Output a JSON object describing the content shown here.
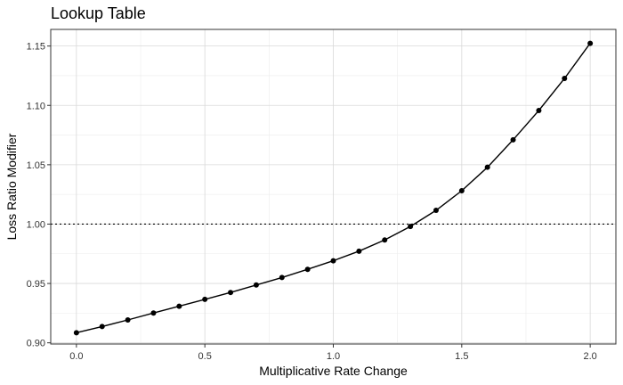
{
  "chart_data": {
    "type": "line",
    "title": "Lookup Table",
    "xlabel": "Multiplicative Rate Change",
    "ylabel": "Loss Ratio Modifier",
    "xlim": [
      -0.1,
      2.1
    ],
    "ylim": [
      0.899,
      1.164
    ],
    "x_ticks": [
      0.0,
      0.5,
      1.0,
      1.5,
      2.0
    ],
    "x_tick_labels": [
      "0.0",
      "0.5",
      "1.0",
      "1.5",
      "2.0"
    ],
    "y_ticks": [
      0.9,
      0.95,
      1.0,
      1.05,
      1.1,
      1.15
    ],
    "y_tick_labels": [
      "0.90",
      "0.95",
      "1.00",
      "1.05",
      "1.10",
      "1.15"
    ],
    "grid": true,
    "reference_line": {
      "y": 1.0,
      "style": "dotted"
    },
    "colors": {
      "line": "#000000",
      "grid_major": "#d9d9d9",
      "grid_minor": "#ececec",
      "panel_border": "#333333"
    },
    "series": [
      {
        "x": [
          0.0,
          0.1,
          0.2,
          0.3,
          0.4,
          0.5,
          0.6,
          0.7,
          0.8,
          0.9,
          1.0,
          1.1,
          1.2,
          1.3,
          1.4,
          1.5,
          1.6,
          1.7,
          1.8,
          1.9,
          2.0
        ],
        "y": [
          0.9085,
          0.9137,
          0.9193,
          0.9251,
          0.9308,
          0.9366,
          0.9424,
          0.9487,
          0.955,
          0.9619,
          0.9691,
          0.9772,
          0.9866,
          0.998,
          1.0116,
          1.0281,
          1.0479,
          1.071,
          1.0957,
          1.1227,
          1.1523
        ]
      }
    ]
  }
}
